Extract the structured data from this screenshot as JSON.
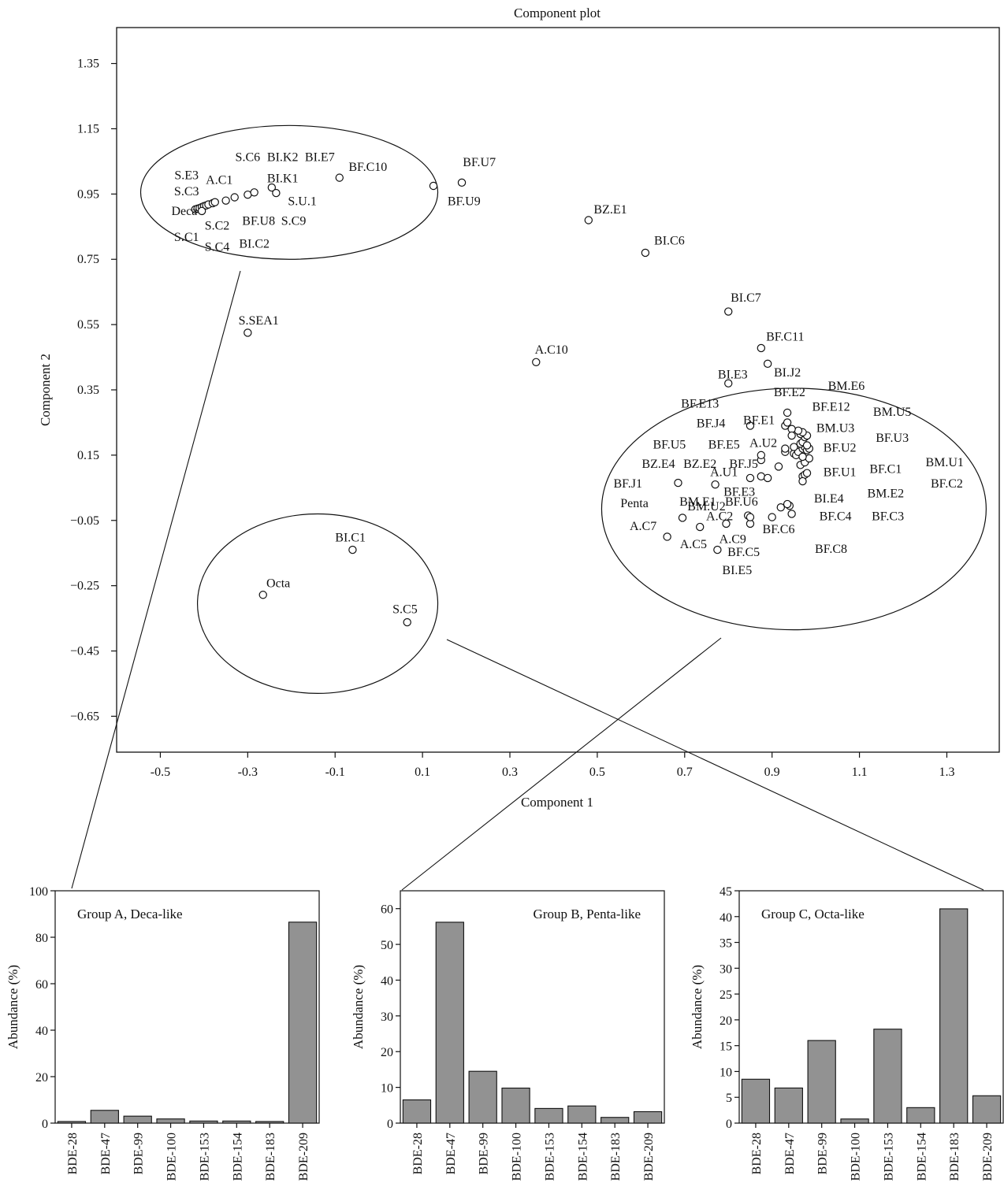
{
  "figure": {
    "scatter": {
      "title": "Component plot",
      "xlabel": "Component 1",
      "ylabel": "Component 2"
    },
    "bars": [
      {
        "title": "Group A, Deca-like",
        "ylabel": "Abundance (%)"
      },
      {
        "title": "Group B, Penta-like",
        "ylabel": "Abundance (%)"
      },
      {
        "title": "Group C, Octa-like",
        "ylabel": "Abundance (%)"
      }
    ]
  },
  "chart_data": [
    {
      "type": "scatter",
      "title": "Component plot",
      "xlabel": "Component 1",
      "ylabel": "Component 2",
      "xlim": [
        -0.6,
        1.42
      ],
      "ylim": [
        -0.76,
        1.46
      ],
      "xticks": [
        "-0.5",
        "-0.3",
        "-0.1",
        "0.1",
        "0.3",
        "0.5",
        "0.7",
        "0.9",
        "1.1",
        "1.3"
      ],
      "yticks": [
        "1.35",
        "1.15",
        "0.95",
        "0.75",
        "0.55",
        "0.35",
        "0.15",
        "−0.05",
        "−0.25",
        "−0.45",
        "−0.65"
      ],
      "grid": false,
      "points": [
        {
          "x": -0.42,
          "y": 0.903
        },
        {
          "x": -0.415,
          "y": 0.905
        },
        {
          "x": -0.41,
          "y": 0.907
        },
        {
          "x": -0.405,
          "y": 0.91
        },
        {
          "x": -0.4,
          "y": 0.913
        },
        {
          "x": -0.405,
          "y": 0.898
        },
        {
          "x": -0.395,
          "y": 0.915
        },
        {
          "x": -0.39,
          "y": 0.918
        },
        {
          "x": -0.38,
          "y": 0.922
        },
        {
          "x": -0.375,
          "y": 0.925
        },
        {
          "x": -0.35,
          "y": 0.93
        },
        {
          "x": -0.33,
          "y": 0.94
        },
        {
          "x": -0.3,
          "y": 0.948
        },
        {
          "x": -0.285,
          "y": 0.955
        },
        {
          "x": -0.245,
          "y": 0.97
        },
        {
          "x": -0.235,
          "y": 0.953
        },
        {
          "x": -0.09,
          "y": 1.0
        },
        {
          "x": 0.125,
          "y": 0.975
        },
        {
          "x": 0.19,
          "y": 0.985
        },
        {
          "x": 0.48,
          "y": 0.87
        },
        {
          "x": 0.61,
          "y": 0.77
        },
        {
          "x": 0.8,
          "y": 0.59
        },
        {
          "x": 0.875,
          "y": 0.478
        },
        {
          "x": 0.89,
          "y": 0.43
        },
        {
          "x": 0.36,
          "y": 0.435
        },
        {
          "x": 0.8,
          "y": 0.37
        },
        {
          "x": -0.3,
          "y": 0.525
        },
        {
          "x": 0.685,
          "y": 0.065
        },
        {
          "x": 0.695,
          "y": -0.042
        },
        {
          "x": 0.66,
          "y": -0.1
        },
        {
          "x": 0.735,
          "y": -0.07
        },
        {
          "x": 0.77,
          "y": 0.06
        },
        {
          "x": 0.775,
          "y": -0.14
        },
        {
          "x": 0.795,
          "y": -0.06
        },
        {
          "x": 0.85,
          "y": -0.06
        },
        {
          "x": 0.845,
          "y": -0.035
        },
        {
          "x": 0.85,
          "y": -0.04
        },
        {
          "x": 0.85,
          "y": 0.08
        },
        {
          "x": 0.9,
          "y": -0.04
        },
        {
          "x": 0.945,
          "y": -0.03
        },
        {
          "x": 0.92,
          "y": -0.01
        },
        {
          "x": 0.94,
          "y": -0.005
        },
        {
          "x": 0.935,
          "y": 0.0
        },
        {
          "x": 0.875,
          "y": 0.085
        },
        {
          "x": 0.89,
          "y": 0.08
        },
        {
          "x": 0.97,
          "y": 0.085
        },
        {
          "x": 0.975,
          "y": 0.09
        },
        {
          "x": 0.97,
          "y": 0.07
        },
        {
          "x": 0.98,
          "y": 0.095
        },
        {
          "x": 0.965,
          "y": 0.12
        },
        {
          "x": 0.975,
          "y": 0.128
        },
        {
          "x": 0.915,
          "y": 0.115
        },
        {
          "x": 0.875,
          "y": 0.135
        },
        {
          "x": 0.875,
          "y": 0.15
        },
        {
          "x": 0.93,
          "y": 0.16
        },
        {
          "x": 0.93,
          "y": 0.17
        },
        {
          "x": 0.95,
          "y": 0.155
        },
        {
          "x": 0.955,
          "y": 0.15
        },
        {
          "x": 0.96,
          "y": 0.16
        },
        {
          "x": 0.97,
          "y": 0.17
        },
        {
          "x": 0.975,
          "y": 0.175
        },
        {
          "x": 0.98,
          "y": 0.165
        },
        {
          "x": 0.985,
          "y": 0.17
        },
        {
          "x": 0.965,
          "y": 0.185
        },
        {
          "x": 0.97,
          "y": 0.19
        },
        {
          "x": 0.98,
          "y": 0.18
        },
        {
          "x": 0.985,
          "y": 0.14
        },
        {
          "x": 0.97,
          "y": 0.145
        },
        {
          "x": 0.95,
          "y": 0.175
        },
        {
          "x": 0.975,
          "y": 0.205
        },
        {
          "x": 0.965,
          "y": 0.215
        },
        {
          "x": 0.98,
          "y": 0.21
        },
        {
          "x": 0.97,
          "y": 0.22
        },
        {
          "x": 0.96,
          "y": 0.225
        },
        {
          "x": 0.945,
          "y": 0.23
        },
        {
          "x": 0.93,
          "y": 0.24
        },
        {
          "x": 0.935,
          "y": 0.25
        },
        {
          "x": 0.935,
          "y": 0.28
        },
        {
          "x": 0.85,
          "y": 0.24
        },
        {
          "x": 0.945,
          "y": 0.21
        },
        {
          "x": -0.265,
          "y": -0.278
        },
        {
          "x": -0.06,
          "y": -0.14
        },
        {
          "x": 0.065,
          "y": -0.362
        }
      ],
      "labels": [
        {
          "text": "S.C6",
          "x": -0.3,
          "y": 1.065
        },
        {
          "text": "BI.K2",
          "x": -0.22,
          "y": 1.065
        },
        {
          "text": "BI.E7",
          "x": -0.135,
          "y": 1.065
        },
        {
          "text": "BF.C10",
          "x": -0.025,
          "y": 1.035
        },
        {
          "text": "S.E3",
          "x": -0.44,
          "y": 1.01
        },
        {
          "text": "A.C1",
          "x": -0.365,
          "y": 0.995
        },
        {
          "text": "BI.K1",
          "x": -0.22,
          "y": 1.0
        },
        {
          "text": "S.C3",
          "x": -0.44,
          "y": 0.96
        },
        {
          "text": "Deca",
          "x": -0.445,
          "y": 0.9
        },
        {
          "text": "S.U.1",
          "x": -0.175,
          "y": 0.93
        },
        {
          "text": "BF.U8",
          "x": -0.275,
          "y": 0.87
        },
        {
          "text": "S.C9",
          "x": -0.195,
          "y": 0.87
        },
        {
          "text": "S.C2",
          "x": -0.37,
          "y": 0.855
        },
        {
          "text": "S.C1",
          "x": -0.44,
          "y": 0.82
        },
        {
          "text": "BI.C2",
          "x": -0.285,
          "y": 0.8
        },
        {
          "text": "S.C4",
          "x": -0.37,
          "y": 0.79
        },
        {
          "text": "BF.U7",
          "x": 0.23,
          "y": 1.05
        },
        {
          "text": "BF.U9",
          "x": 0.195,
          "y": 0.93
        },
        {
          "text": "BZ.E1",
          "x": 0.53,
          "y": 0.905
        },
        {
          "text": "BI.C6",
          "x": 0.665,
          "y": 0.81
        },
        {
          "text": "BI.C7",
          "x": 0.84,
          "y": 0.635
        },
        {
          "text": "S.SEA1",
          "x": -0.275,
          "y": 0.565
        },
        {
          "text": "BF.C11",
          "x": 0.93,
          "y": 0.515
        },
        {
          "text": "A.C10",
          "x": 0.395,
          "y": 0.475
        },
        {
          "text": "BI.E3",
          "x": 0.81,
          "y": 0.4
        },
        {
          "text": "BI.J2",
          "x": 0.935,
          "y": 0.405
        },
        {
          "text": "BF.E2",
          "x": 0.94,
          "y": 0.345
        },
        {
          "text": "BM.E6",
          "x": 1.07,
          "y": 0.365
        },
        {
          "text": "BF.E13",
          "x": 0.735,
          "y": 0.31
        },
        {
          "text": "BF.E12",
          "x": 1.035,
          "y": 0.3
        },
        {
          "text": "BM.U5",
          "x": 1.175,
          "y": 0.285
        },
        {
          "text": "BF.J4",
          "x": 0.76,
          "y": 0.25
        },
        {
          "text": "BF.E1",
          "x": 0.87,
          "y": 0.26
        },
        {
          "text": "BM.U3",
          "x": 1.045,
          "y": 0.235
        },
        {
          "text": "BF.U5",
          "x": 0.665,
          "y": 0.185
        },
        {
          "text": "BF.E5",
          "x": 0.79,
          "y": 0.185
        },
        {
          "text": "A.U2",
          "x": 0.88,
          "y": 0.19
        },
        {
          "text": "BF.U2",
          "x": 1.055,
          "y": 0.175
        },
        {
          "text": "BF.U3",
          "x": 1.175,
          "y": 0.205
        },
        {
          "text": "BZ.E4",
          "x": 0.64,
          "y": 0.125
        },
        {
          "text": "BZ.E2",
          "x": 0.735,
          "y": 0.125
        },
        {
          "text": "BF.J5",
          "x": 0.835,
          "y": 0.125
        },
        {
          "text": "BF.C1",
          "x": 1.16,
          "y": 0.11
        },
        {
          "text": "BM.U1",
          "x": 1.295,
          "y": 0.13
        },
        {
          "text": "A.U1",
          "x": 0.79,
          "y": 0.1
        },
        {
          "text": "BF.U1",
          "x": 1.055,
          "y": 0.1
        },
        {
          "text": "BF.C2",
          "x": 1.3,
          "y": 0.065
        },
        {
          "text": "BF.J1",
          "x": 0.57,
          "y": 0.065
        },
        {
          "text": "BF.E3",
          "x": 0.825,
          "y": 0.04
        },
        {
          "text": "BM.E2",
          "x": 1.16,
          "y": 0.035
        },
        {
          "text": "BI.E4",
          "x": 1.03,
          "y": 0.02
        },
        {
          "text": "BM.E1",
          "x": 0.73,
          "y": 0.01
        },
        {
          "text": "BF.U6",
          "x": 0.83,
          "y": 0.01
        },
        {
          "text": "Penta",
          "x": 0.585,
          "y": 0.005
        },
        {
          "text": "BM.U2",
          "x": 0.75,
          "y": -0.005
        },
        {
          "text": "A.C2",
          "x": 0.78,
          "y": -0.035
        },
        {
          "text": "BF.C4",
          "x": 1.045,
          "y": -0.035
        },
        {
          "text": "BF.C3",
          "x": 1.165,
          "y": -0.035
        },
        {
          "text": "A.C7",
          "x": 0.605,
          "y": -0.065
        },
        {
          "text": "BF.C6",
          "x": 0.915,
          "y": -0.075
        },
        {
          "text": "A.C9",
          "x": 0.81,
          "y": -0.105
        },
        {
          "text": "A.C5",
          "x": 0.72,
          "y": -0.12
        },
        {
          "text": "BF.C8",
          "x": 1.035,
          "y": -0.135
        },
        {
          "text": "BF.C5",
          "x": 0.835,
          "y": -0.145
        },
        {
          "text": "BI.E5",
          "x": 0.82,
          "y": -0.2
        },
        {
          "text": "BI.C1",
          "x": -0.065,
          "y": -0.1
        },
        {
          "text": "Octa",
          "x": -0.23,
          "y": -0.24
        },
        {
          "text": "S.C5",
          "x": 0.06,
          "y": -0.32
        }
      ],
      "groups": [
        {
          "cx": -0.205,
          "cy": 0.955,
          "rx": 0.34,
          "ry": 0.205
        },
        {
          "cx": 0.95,
          "cy": -0.015,
          "rx": 0.44,
          "ry": 0.37
        },
        {
          "cx": -0.14,
          "cy": -0.305,
          "rx": 0.275,
          "ry": 0.275
        }
      ]
    },
    {
      "type": "bar",
      "title": "Group A, Deca-like",
      "ylabel": "Abundance (%)",
      "categories": [
        "BDE-28",
        "BDE-47",
        "BDE-99",
        "BDE-100",
        "BDE-153",
        "BDE-154",
        "BDE-183",
        "BDE-209"
      ],
      "values": [
        0.7,
        5.5,
        3.0,
        1.8,
        0.9,
        0.9,
        0.7,
        86.5
      ],
      "ylim": [
        0,
        100
      ],
      "yticks": [
        0,
        20,
        40,
        60,
        80,
        100
      ]
    },
    {
      "type": "bar",
      "title": "Group B, Penta-like",
      "ylabel": "Abundance (%)",
      "categories": [
        "BDE-28",
        "BDE-47",
        "BDE-99",
        "BDE-100",
        "BDE-153",
        "BDE-154",
        "BDE-183",
        "BDE-209"
      ],
      "values": [
        6.5,
        56.2,
        14.5,
        9.8,
        4.1,
        4.8,
        1.6,
        3.2
      ],
      "ylim": [
        0,
        65
      ],
      "yticks": [
        0,
        10,
        20,
        30,
        40,
        50,
        60
      ]
    },
    {
      "type": "bar",
      "title": "Group C, Octa-like",
      "ylabel": "Abundance (%)",
      "categories": [
        "BDE-28",
        "BDE-47",
        "BDE-99",
        "BDE-100",
        "BDE-153",
        "BDE-154",
        "BDE-183",
        "BDE-209"
      ],
      "values": [
        8.5,
        6.8,
        16.0,
        0.8,
        18.2,
        3.0,
        41.5,
        5.3
      ],
      "ylim": [
        0,
        45
      ],
      "yticks": [
        0,
        5,
        10,
        15,
        20,
        25,
        30,
        35,
        40,
        45
      ]
    }
  ]
}
